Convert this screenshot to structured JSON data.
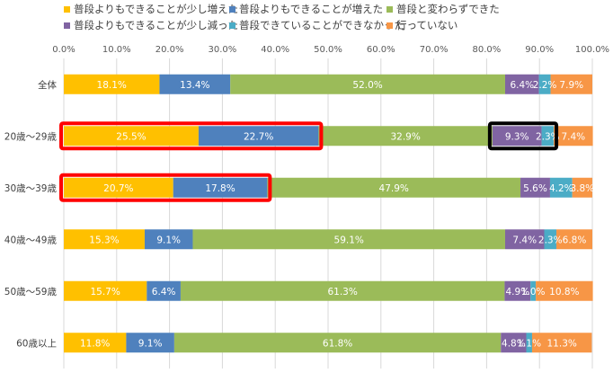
{
  "chart_data": {
    "type": "bar",
    "orientation": "horizontal",
    "stacked": true,
    "percent": true,
    "title": "",
    "xlabel": "",
    "ylabel": "",
    "xlim": [
      0,
      100
    ],
    "x_ticks": [
      "0.0%",
      "10.0%",
      "20.0%",
      "30.0%",
      "40.0%",
      "50.0%",
      "60.0%",
      "70.0%",
      "80.0%",
      "90.0%",
      "100.0%"
    ],
    "grid": true,
    "legend_position": "top",
    "categories": [
      "全体",
      "20歳〜29歳",
      "30歳〜39歳",
      "40歳〜49歳",
      "50歳〜59歳",
      "60歳以上"
    ],
    "series": [
      {
        "name": "普段よりもできることが少し増えた",
        "color": "#FFC000",
        "values": [
          18.1,
          25.5,
          20.7,
          15.3,
          15.7,
          11.8
        ],
        "labels": [
          "18.1%",
          "25.5%",
          "20.7%",
          "15.3%",
          "15.7%",
          "11.8%"
        ]
      },
      {
        "name": "普段よりもできることが増えた",
        "color": "#4F81BD",
        "values": [
          13.4,
          22.7,
          17.8,
          9.1,
          6.4,
          9.1
        ],
        "labels": [
          "13.4%",
          "22.7%",
          "17.8%",
          "9.1%",
          "6.4%",
          "9.1%"
        ]
      },
      {
        "name": "普段と変わらずできた",
        "color": "#9BBB59",
        "values": [
          52.0,
          32.9,
          47.9,
          59.1,
          61.3,
          61.8
        ],
        "labels": [
          "52.0%",
          "32.9%",
          "47.9%",
          "59.1%",
          "61.3%",
          "61.8%"
        ]
      },
      {
        "name": "普段よりもできることが少し減った",
        "color": "#8064A2",
        "values": [
          6.4,
          9.3,
          5.6,
          7.4,
          4.9,
          4.8
        ],
        "labels": [
          "6.4%",
          "9.3%",
          "5.6%",
          "7.4%",
          "4.9%",
          "4.8%"
        ]
      },
      {
        "name": "普段できていることができなかった",
        "color": "#4BACC6",
        "values": [
          2.2,
          2.3,
          4.2,
          2.3,
          1.0,
          1.1
        ],
        "labels": [
          "2.2%",
          "2.3%",
          "4.2%",
          "2.3%",
          "1.0%",
          "1.1%"
        ]
      },
      {
        "name": "行っていない",
        "color": "#F79646",
        "values": [
          7.9,
          7.4,
          3.8,
          6.8,
          10.8,
          11.3
        ],
        "labels": [
          "7.9%",
          "7.4%",
          "3.8%",
          "6.8%",
          "10.8%",
          "11.3%"
        ]
      }
    ],
    "highlights": [
      {
        "category": "20歳〜29歳",
        "from_series": 0,
        "to_series": 1,
        "color": "#FF0000"
      },
      {
        "category": "30歳〜39歳",
        "from_series": 0,
        "to_series": 1,
        "color": "#FF0000"
      },
      {
        "category": "20歳〜29歳",
        "from_series": 3,
        "to_series": 4,
        "color": "#000000"
      }
    ],
    "colors": {
      "grid": "#D9D9D9",
      "axis_text": "#595959",
      "label_text": "#FFFFFF"
    }
  }
}
